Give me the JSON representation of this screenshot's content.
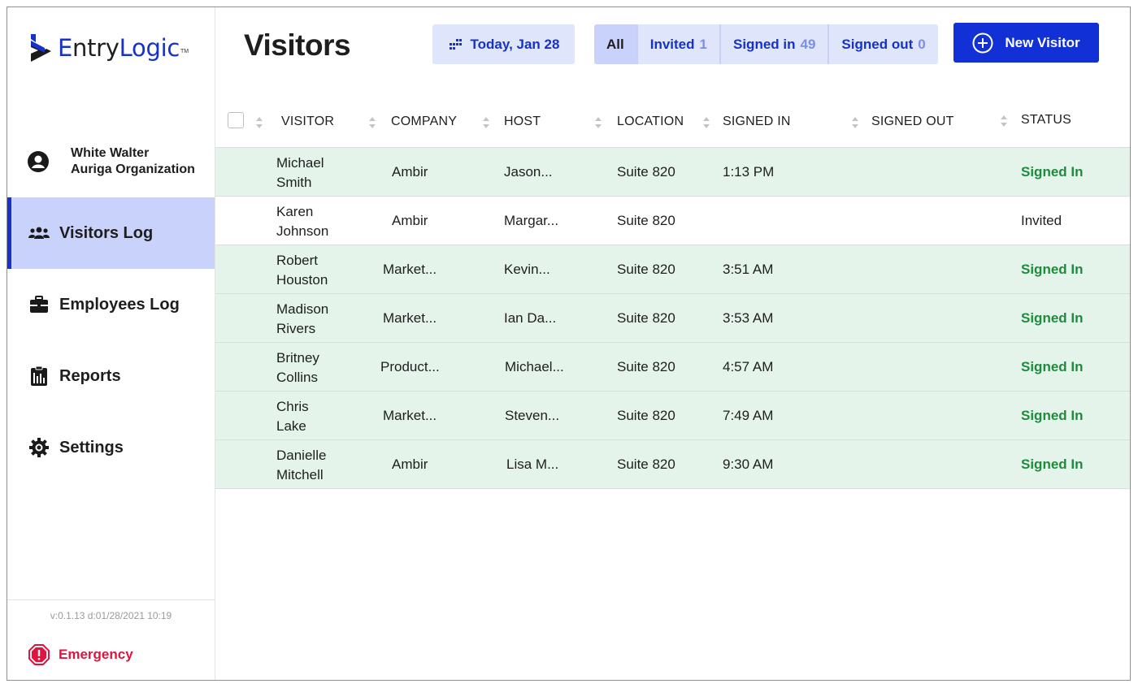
{
  "brand": {
    "name_part1": "E",
    "name_part2": "ntry",
    "name_part3": "Logic",
    "tm": "TM",
    "accent": "#1632C8"
  },
  "user": {
    "name": "White Walter",
    "organization": "Auriga Organization"
  },
  "nav": [
    {
      "label": "Visitors Log",
      "icon": "visitors-icon",
      "active": true
    },
    {
      "label": "Employees Log",
      "icon": "briefcase-icon",
      "active": false
    },
    {
      "label": "Reports",
      "icon": "reports-icon",
      "active": false
    },
    {
      "label": "Settings",
      "icon": "gear-icon",
      "active": false
    }
  ],
  "version": "v:0.1.13 d:01/28/2021 10:19",
  "emergency": {
    "label": "Emergency",
    "color": "#E0143C"
  },
  "header": {
    "title": "Visitors",
    "date_label": "Today, Jan 28",
    "filters": [
      {
        "label": "All",
        "count": "",
        "active": true
      },
      {
        "label": "Invited",
        "count": "1",
        "active": false
      },
      {
        "label": "Signed in",
        "count": "49",
        "active": false
      },
      {
        "label": "Signed out",
        "count": "0",
        "active": false
      }
    ],
    "new_button": "New Visitor"
  },
  "table": {
    "columns": [
      "VISITOR",
      "COMPANY",
      "HOST",
      "LOCATION",
      "SIGNED IN",
      "SIGNED OUT",
      "STATUS"
    ],
    "rows": [
      {
        "first": "Michael",
        "last": "Smith",
        "company": "Ambir",
        "host": "Jason...",
        "location": "Suite 820",
        "signed_in": "1:13 PM",
        "signed_out": "",
        "status": "Signed In"
      },
      {
        "first": "Karen",
        "last": "Johnson",
        "company": "Ambir",
        "host": "Margar...",
        "location": "Suite 820",
        "signed_in": "",
        "signed_out": "",
        "status": "Invited"
      },
      {
        "first": "Robert",
        "last": "Houston",
        "company": "Market...",
        "host": "Kevin...",
        "location": "Suite 820",
        "signed_in": "3:51 AM",
        "signed_out": "",
        "status": "Signed In"
      },
      {
        "first": "Madison",
        "last": "Rivers",
        "company": "Market...",
        "host": "Ian Da...",
        "location": "Suite 820",
        "signed_in": "3:53 AM",
        "signed_out": "",
        "status": "Signed In"
      },
      {
        "first": "Britney",
        "last": "Collins",
        "company": "Product...",
        "host": "Michael...",
        "location": "Suite 820",
        "signed_in": "4:57 AM",
        "signed_out": "",
        "status": "Signed In"
      },
      {
        "first": "Chris",
        "last": "Lake",
        "company": "Market...",
        "host": "Steven...",
        "location": "Suite 820",
        "signed_in": "7:49 AM",
        "signed_out": "",
        "status": "Signed In"
      },
      {
        "first": "Danielle",
        "last": "Mitchell",
        "company": "Ambir",
        "host": "Lisa M...",
        "location": "Suite 820",
        "signed_in": "9:30 AM",
        "signed_out": "",
        "status": "Signed In"
      }
    ]
  },
  "colors": {
    "signed_row_bg": "#E4F4EA",
    "signed_status": "#1F8B3D",
    "active_nav_bg": "#C8D2FB",
    "primary_button": "#1130D6"
  }
}
